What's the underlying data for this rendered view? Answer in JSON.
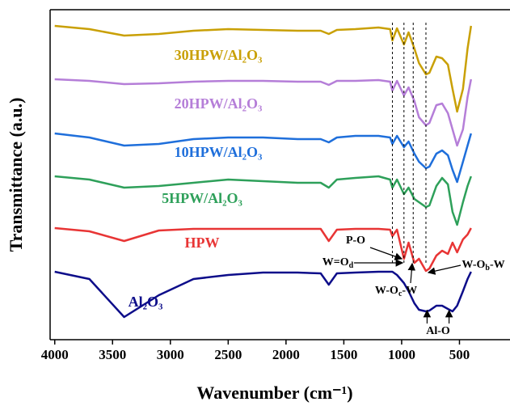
{
  "chart_data": {
    "type": "line",
    "xlabel": "Wavenumber (cm⁻¹)",
    "ylabel": "Transmittance (a.u.)",
    "x": [
      4000,
      3700,
      3400,
      3100,
      2800,
      2500,
      2200,
      1900,
      1700,
      1630,
      1560,
      1400,
      1200,
      1100,
      1080,
      1040,
      980,
      940,
      890,
      850,
      790,
      760,
      700,
      650,
      600,
      560,
      520,
      470,
      430,
      400
    ],
    "xlim": [
      4040,
      70
    ],
    "xticks": [
      4000,
      3500,
      3000,
      2500,
      2000,
      1500,
      1000,
      500
    ],
    "ylim": [
      0,
      408
    ],
    "series": [
      {
        "name": "30HPW/Al₂O₃",
        "color": "#c9a006",
        "values": [
          388,
          384,
          376,
          378,
          382,
          384,
          383,
          382,
          382,
          378,
          383,
          384,
          386,
          384,
          370,
          385,
          365,
          380,
          360,
          342,
          328,
          330,
          350,
          348,
          340,
          310,
          282,
          310,
          360,
          388
        ]
      },
      {
        "name": "20HPW/Al₂O₃",
        "color": "#b57ed8",
        "values": [
          322,
          320,
          316,
          317,
          319,
          320,
          320,
          319,
          319,
          315,
          320,
          320,
          321,
          319,
          308,
          320,
          302,
          312,
          295,
          275,
          265,
          268,
          290,
          292,
          280,
          260,
          240,
          260,
          300,
          322
        ]
      },
      {
        "name": "10HPW/Al₂O₃",
        "color": "#1f6fdb",
        "values": [
          255,
          250,
          240,
          242,
          248,
          250,
          250,
          248,
          248,
          244,
          250,
          252,
          252,
          250,
          242,
          252,
          238,
          245,
          230,
          220,
          212,
          214,
          230,
          234,
          228,
          210,
          195,
          220,
          240,
          255
        ]
      },
      {
        "name": "5HPW/Al₂O₃",
        "color": "#2ea05a",
        "values": [
          202,
          198,
          188,
          190,
          194,
          198,
          196,
          194,
          194,
          188,
          198,
          200,
          202,
          198,
          188,
          198,
          180,
          188,
          174,
          170,
          164,
          166,
          190,
          200,
          192,
          158,
          142,
          170,
          190,
          202
        ]
      },
      {
        "name": "HPW",
        "color": "#e83535",
        "values": [
          138,
          134,
          122,
          135,
          137,
          137,
          137,
          137,
          137,
          122,
          136,
          137,
          137,
          136,
          128,
          136,
          100,
          120,
          95,
          100,
          85,
          88,
          104,
          110,
          106,
          120,
          108,
          124,
          130,
          138
        ]
      },
      {
        "name": "Al₂O₃",
        "color": "#0d0d8a",
        "values": [
          84,
          75,
          28,
          55,
          75,
          80,
          83,
          83,
          82,
          68,
          82,
          83,
          84,
          84,
          84,
          80,
          70,
          60,
          45,
          37,
          35,
          36,
          42,
          42,
          38,
          35,
          42,
          60,
          75,
          84
        ]
      }
    ],
    "annotations": [
      {
        "text": "P-O",
        "x": 1080
      },
      {
        "text": "W=O",
        "sub": "d",
        "x": 980
      },
      {
        "text": "W-O",
        "sub": "c",
        "tail": "-W",
        "x": 900
      },
      {
        "text": "W-O",
        "sub": "b",
        "tail": "-W",
        "x": 790
      },
      {
        "text": "Al-O",
        "x": [
          780,
          590
        ]
      }
    ]
  }
}
